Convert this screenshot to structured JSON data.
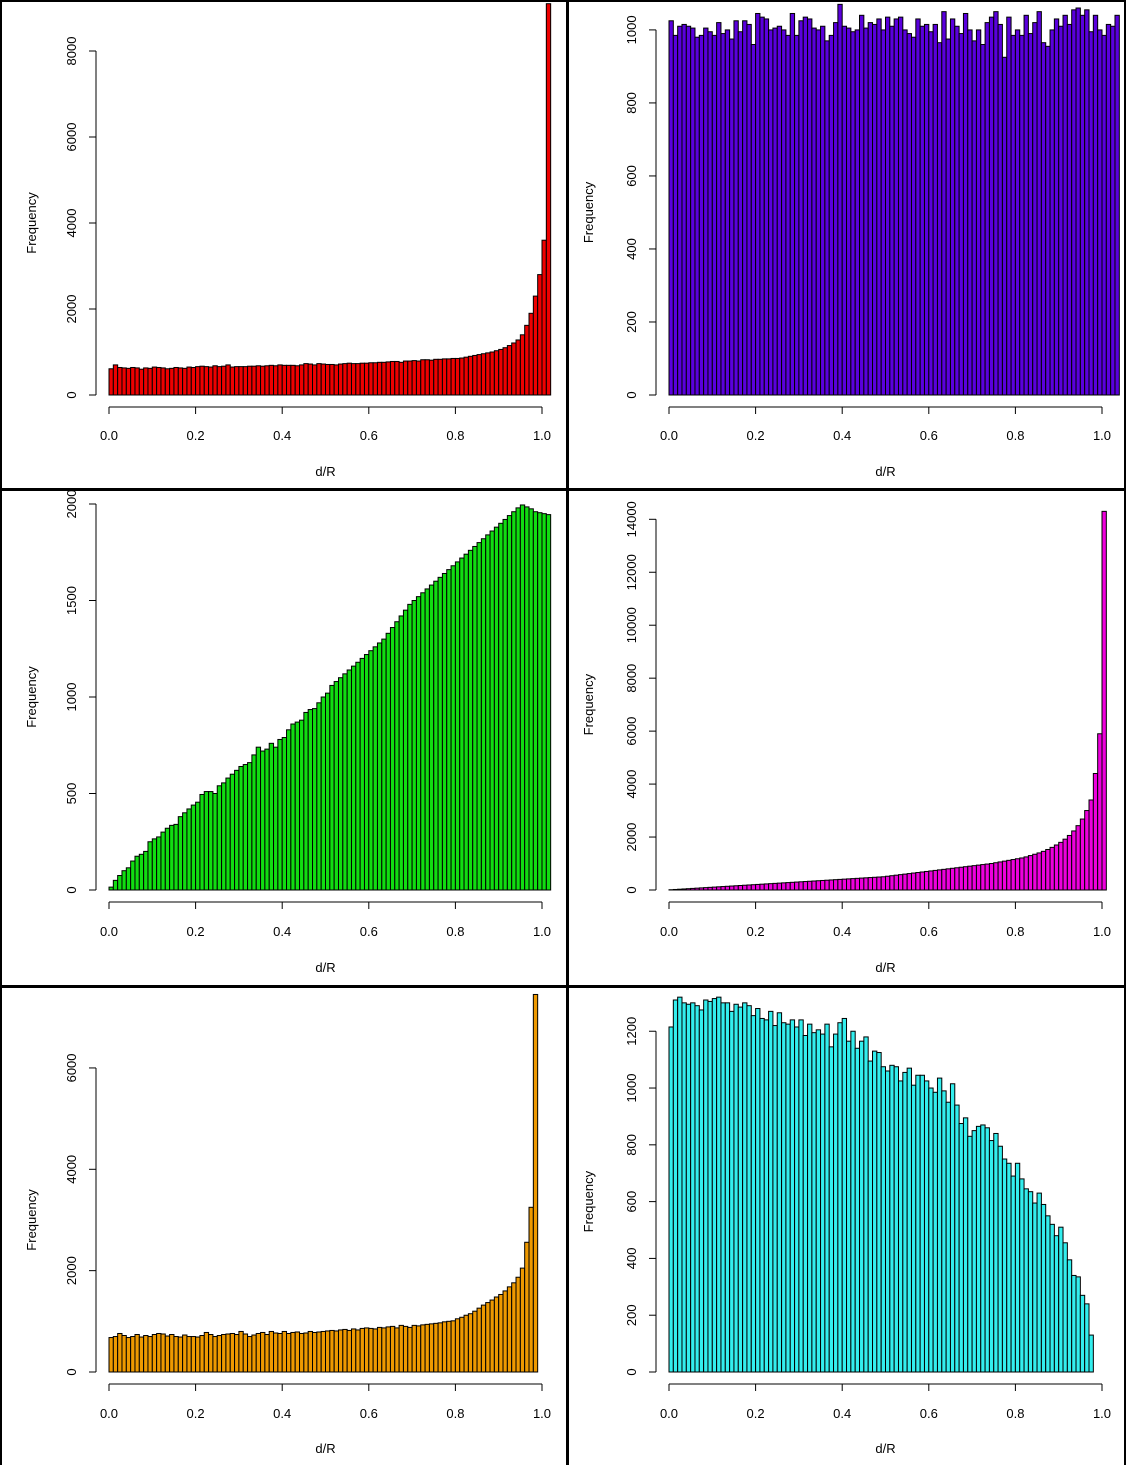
{
  "figure": {
    "divider_color": "#000000"
  },
  "chart_data": [
    {
      "type": "bar",
      "xlabel": "d/R",
      "ylabel": "Frequency",
      "color": "#ee0000",
      "xlim": [
        0,
        1
      ],
      "ylim": [
        0,
        9000
      ],
      "xticks": [
        "0.0",
        "0.2",
        "0.4",
        "0.6",
        "0.8",
        "1.0"
      ],
      "yticks": [
        "0",
        "2000",
        "4000",
        "6000",
        "8000"
      ],
      "bin_width": 0.01,
      "values": [
        610,
        700,
        640,
        630,
        620,
        640,
        630,
        600,
        630,
        620,
        650,
        640,
        630,
        610,
        620,
        640,
        630,
        620,
        650,
        640,
        660,
        670,
        660,
        650,
        680,
        660,
        670,
        700,
        650,
        660,
        660,
        660,
        670,
        670,
        680,
        670,
        680,
        690,
        680,
        700,
        690,
        690,
        690,
        680,
        700,
        730,
        720,
        700,
        730,
        720,
        710,
        710,
        700,
        720,
        730,
        740,
        730,
        730,
        740,
        740,
        750,
        750,
        760,
        760,
        770,
        780,
        780,
        760,
        790,
        790,
        800,
        790,
        820,
        820,
        810,
        830,
        830,
        840,
        840,
        850,
        850,
        860,
        880,
        900,
        920,
        940,
        960,
        980,
        1000,
        1030,
        1060,
        1100,
        1150,
        1210,
        1280,
        1400,
        1620,
        1900,
        2300,
        2800,
        3600,
        9100
      ]
    },
    {
      "type": "bar",
      "xlabel": "d/R",
      "ylabel": "Frequency",
      "color": "#5a00dd",
      "xlim": [
        0,
        1
      ],
      "ylim": [
        0,
        1060
      ],
      "xticks": [
        "0.0",
        "0.2",
        "0.4",
        "0.6",
        "0.8",
        "1.0"
      ],
      "yticks": [
        "0",
        "200",
        "400",
        "600",
        "800",
        "1000"
      ],
      "bin_width": 0.01,
      "values": [
        1025,
        985,
        1010,
        1015,
        1010,
        1005,
        980,
        985,
        1005,
        995,
        985,
        1020,
        990,
        1000,
        975,
        1025,
        995,
        1025,
        1015,
        960,
        1045,
        1035,
        1030,
        1000,
        1005,
        1010,
        1000,
        985,
        1045,
        985,
        1025,
        1035,
        1030,
        1005,
        1000,
        1010,
        970,
        985,
        1020,
        1070,
        1010,
        1005,
        995,
        1000,
        1040,
        1005,
        1020,
        1015,
        1030,
        1000,
        1035,
        1010,
        1030,
        1035,
        1000,
        990,
        980,
        1030,
        1010,
        1015,
        995,
        1015,
        965,
        1050,
        975,
        1030,
        1010,
        990,
        1045,
        1000,
        970,
        1000,
        960,
        1020,
        1035,
        1050,
        1015,
        925,
        1035,
        985,
        1000,
        985,
        1040,
        990,
        1020,
        1050,
        965,
        955,
        1000,
        1030,
        1010,
        1040,
        1015,
        1055,
        1060,
        1040,
        1055,
        995,
        1040,
        1000,
        985,
        1015,
        1010,
        1040
      ]
    },
    {
      "type": "bar",
      "xlabel": "d/R",
      "ylabel": "Frequency",
      "color": "#11dd11",
      "xlim": [
        0,
        1
      ],
      "ylim": [
        0,
        2000
      ],
      "xticks": [
        "0.0",
        "0.2",
        "0.4",
        "0.6",
        "0.8",
        "1.0"
      ],
      "yticks": [
        "0",
        "500",
        "1000",
        "1500",
        "2000"
      ],
      "bin_width": 0.01,
      "values": [
        15,
        50,
        75,
        100,
        115,
        150,
        175,
        185,
        200,
        250,
        265,
        275,
        300,
        320,
        335,
        340,
        380,
        400,
        420,
        440,
        455,
        495,
        510,
        510,
        500,
        540,
        555,
        580,
        600,
        620,
        640,
        650,
        660,
        700,
        740,
        720,
        730,
        760,
        740,
        780,
        790,
        830,
        860,
        870,
        880,
        920,
        935,
        940,
        970,
        1000,
        1020,
        1060,
        1080,
        1100,
        1120,
        1140,
        1160,
        1180,
        1200,
        1220,
        1240,
        1260,
        1280,
        1300,
        1330,
        1360,
        1390,
        1420,
        1450,
        1480,
        1500,
        1520,
        1540,
        1560,
        1580,
        1600,
        1620,
        1640,
        1660,
        1680,
        1700,
        1720,
        1740,
        1760,
        1780,
        1800,
        1820,
        1840,
        1860,
        1880,
        1900,
        1920,
        1940,
        1960,
        1980,
        1995,
        1985,
        1975,
        1960,
        1955,
        1950,
        1945
      ]
    },
    {
      "type": "bar",
      "xlabel": "d/R",
      "ylabel": "Frequency",
      "color": "#ee00dd",
      "xlim": [
        0,
        1
      ],
      "ylim": [
        0,
        14200
      ],
      "xticks": [
        "0.0",
        "0.2",
        "0.4",
        "0.6",
        "0.8",
        "1.0"
      ],
      "yticks": [
        "0",
        "2000",
        "4000",
        "6000",
        "8000",
        "10000",
        "12000",
        "14000"
      ],
      "bin_width": 0.01,
      "values": [
        10,
        20,
        30,
        40,
        50,
        60,
        70,
        80,
        90,
        100,
        110,
        120,
        130,
        140,
        150,
        160,
        170,
        180,
        190,
        200,
        210,
        220,
        230,
        240,
        250,
        260,
        270,
        280,
        290,
        300,
        310,
        320,
        330,
        340,
        350,
        360,
        370,
        380,
        390,
        400,
        410,
        420,
        430,
        440,
        450,
        460,
        470,
        480,
        490,
        500,
        520,
        540,
        560,
        580,
        600,
        620,
        640,
        660,
        680,
        700,
        720,
        740,
        760,
        780,
        800,
        820,
        840,
        860,
        880,
        900,
        920,
        940,
        960,
        980,
        1000,
        1030,
        1060,
        1090,
        1120,
        1150,
        1180,
        1210,
        1250,
        1300,
        1350,
        1400,
        1460,
        1530,
        1610,
        1700,
        1800,
        1920,
        2060,
        2230,
        2430,
        2680,
        3000,
        3400,
        4400,
        5900,
        14300
      ]
    },
    {
      "type": "bar",
      "xlabel": "d/R",
      "ylabel": "Frequency",
      "color": "#ee9900",
      "xlim": [
        0,
        1
      ],
      "ylim": [
        0,
        7400
      ],
      "xticks": [
        "0.0",
        "0.2",
        "0.4",
        "0.6",
        "0.8",
        "1.0"
      ],
      "yticks": [
        "0",
        "2000",
        "4000",
        "6000"
      ],
      "bin_width": 0.01,
      "values": [
        680,
        700,
        760,
        720,
        680,
        700,
        740,
        690,
        720,
        700,
        740,
        760,
        750,
        710,
        740,
        700,
        690,
        730,
        700,
        700,
        690,
        720,
        780,
        740,
        700,
        720,
        740,
        750,
        760,
        740,
        800,
        750,
        700,
        730,
        760,
        780,
        740,
        800,
        770,
        760,
        800,
        760,
        780,
        790,
        760,
        770,
        800,
        780,
        790,
        800,
        810,
        820,
        810,
        830,
        840,
        820,
        850,
        830,
        860,
        870,
        860,
        850,
        880,
        870,
        890,
        900,
        870,
        920,
        900,
        880,
        920,
        910,
        930,
        940,
        950,
        960,
        970,
        990,
        1000,
        1010,
        1050,
        1080,
        1120,
        1150,
        1200,
        1260,
        1320,
        1370,
        1420,
        1480,
        1530,
        1600,
        1680,
        1760,
        1870,
        2050,
        2560,
        3250,
        7450
      ]
    },
    {
      "type": "bar",
      "xlabel": "d/R",
      "ylabel": "Frequency",
      "color": "#33eeee",
      "xlim": [
        0,
        1
      ],
      "ylim": [
        0,
        1310
      ],
      "xticks": [
        "0.0",
        "0.2",
        "0.4",
        "0.6",
        "0.8",
        "1.0"
      ],
      "yticks": [
        "0",
        "200",
        "400",
        "600",
        "800",
        "1000",
        "1200"
      ],
      "bin_width": 0.01,
      "values": [
        1215,
        1310,
        1320,
        1300,
        1295,
        1300,
        1290,
        1275,
        1310,
        1305,
        1315,
        1320,
        1300,
        1300,
        1270,
        1295,
        1285,
        1300,
        1290,
        1255,
        1280,
        1245,
        1240,
        1270,
        1220,
        1265,
        1230,
        1225,
        1240,
        1215,
        1240,
        1185,
        1225,
        1195,
        1205,
        1190,
        1225,
        1145,
        1190,
        1230,
        1245,
        1165,
        1200,
        1140,
        1165,
        1180,
        1095,
        1130,
        1125,
        1075,
        1060,
        1080,
        1075,
        1025,
        1055,
        1070,
        1010,
        1045,
        1045,
        1025,
        1000,
        985,
        1035,
        990,
        950,
        1015,
        940,
        875,
        895,
        830,
        850,
        865,
        870,
        860,
        815,
        840,
        795,
        750,
        735,
        690,
        735,
        680,
        645,
        635,
        595,
        630,
        590,
        550,
        520,
        480,
        510,
        455,
        395,
        340,
        335,
        270,
        240,
        130
      ]
    }
  ]
}
